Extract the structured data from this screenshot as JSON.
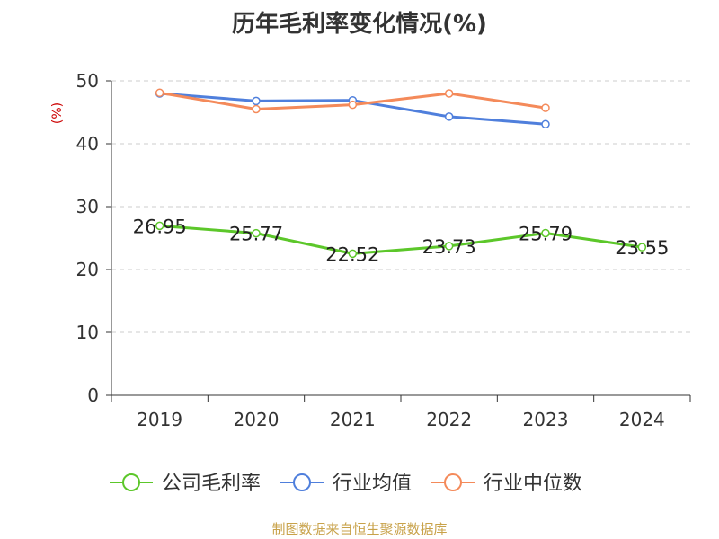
{
  "chart_data": {
    "type": "line",
    "title": "历年毛利率变化情况(%)",
    "ylabel": "(%)",
    "ylim": [
      0,
      50
    ],
    "yticks": [
      0,
      10,
      20,
      30,
      40,
      50
    ],
    "categories": [
      "2019",
      "2020",
      "2021",
      "2022",
      "2023",
      "2024"
    ],
    "grid": true,
    "legend_position": "bottom",
    "series": [
      {
        "name": "公司毛利率",
        "color": "#5cc72a",
        "values": [
          26.95,
          25.77,
          22.52,
          23.73,
          25.79,
          23.55
        ],
        "labels": [
          "26.95",
          "25.77",
          "22.52",
          "23.73",
          "25.79",
          "23.55"
        ]
      },
      {
        "name": "行业均值",
        "color": "#4f7fdc",
        "values": [
          48.0,
          46.8,
          46.9,
          44.3,
          43.1,
          null
        ]
      },
      {
        "name": "行业中位数",
        "color": "#f48a5a",
        "values": [
          48.1,
          45.5,
          46.2,
          48.0,
          45.7,
          null
        ]
      }
    ]
  },
  "source": "制图数据来自恒生聚源数据库",
  "colors": {
    "ylabel": "#cc0000",
    "grid": "#cccccc",
    "axis": "#333333"
  }
}
